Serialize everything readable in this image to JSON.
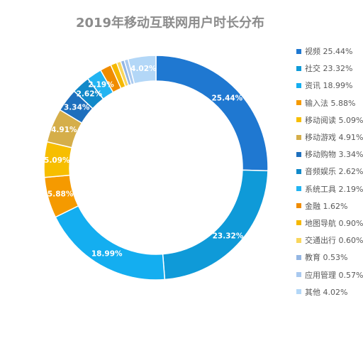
{
  "chart_data": {
    "type": "pie",
    "title": "2019年移动互联网用户时长分布",
    "legend_position": "right",
    "slices": [
      {
        "name": "视频",
        "value": 25.44,
        "label": "25.44%",
        "legend": "视频 25.44%",
        "color": "#1f78d1"
      },
      {
        "name": "社交",
        "value": 23.32,
        "label": "23.32%",
        "legend": "社交 23.32%",
        "color": "#0f9ad8"
      },
      {
        "name": "资讯",
        "value": 18.99,
        "label": "18.99%",
        "legend": "资讯 18.99%",
        "color": "#14aef0"
      },
      {
        "name": "输入法",
        "value": 5.88,
        "label": "5.88%",
        "legend": "输入法 5.88%",
        "color": "#f59a00"
      },
      {
        "name": "移动阅读",
        "value": 5.09,
        "label": "5.09%",
        "legend": "移动阅读 5.09%",
        "color": "#f7be00"
      },
      {
        "name": "移动游戏",
        "value": 4.91,
        "label": "4.91%",
        "legend": "移动游戏 4.91%",
        "color": "#d5ae4a"
      },
      {
        "name": "移动购物",
        "value": 3.34,
        "label": "3.34%",
        "legend": "移动购物 3.34%",
        "color": "#1e6fbd"
      },
      {
        "name": "音频娱乐",
        "value": 2.62,
        "label": "2.62%",
        "legend": "音频娱乐 2.62%",
        "color": "#1189c9"
      },
      {
        "name": "系统工具",
        "value": 2.19,
        "label": "2.19%",
        "legend": "系统工具 2.19%",
        "color": "#22b4f2"
      },
      {
        "name": "金融",
        "value": 1.62,
        "label": "",
        "legend": "金融 1.62%",
        "color": "#f08c00"
      },
      {
        "name": "地图导航",
        "value": 0.9,
        "label": "",
        "legend": "地图导航 0.90%",
        "color": "#f5b800"
      },
      {
        "name": "交通出行",
        "value": 0.6,
        "label": "",
        "legend": "交通出行 0.60%",
        "color": "#f9d65c"
      },
      {
        "name": "教育",
        "value": 0.53,
        "label": "",
        "legend": "教育 0.53%",
        "color": "#94b6e3"
      },
      {
        "name": "应用管理",
        "value": 0.57,
        "label": "",
        "legend": "应用管理 0.57%",
        "color": "#a9c9ef"
      },
      {
        "name": "其他",
        "value": 4.02,
        "label": "4.02%",
        "legend": "其他 4.02%",
        "color": "#b3d7f7"
      }
    ]
  }
}
